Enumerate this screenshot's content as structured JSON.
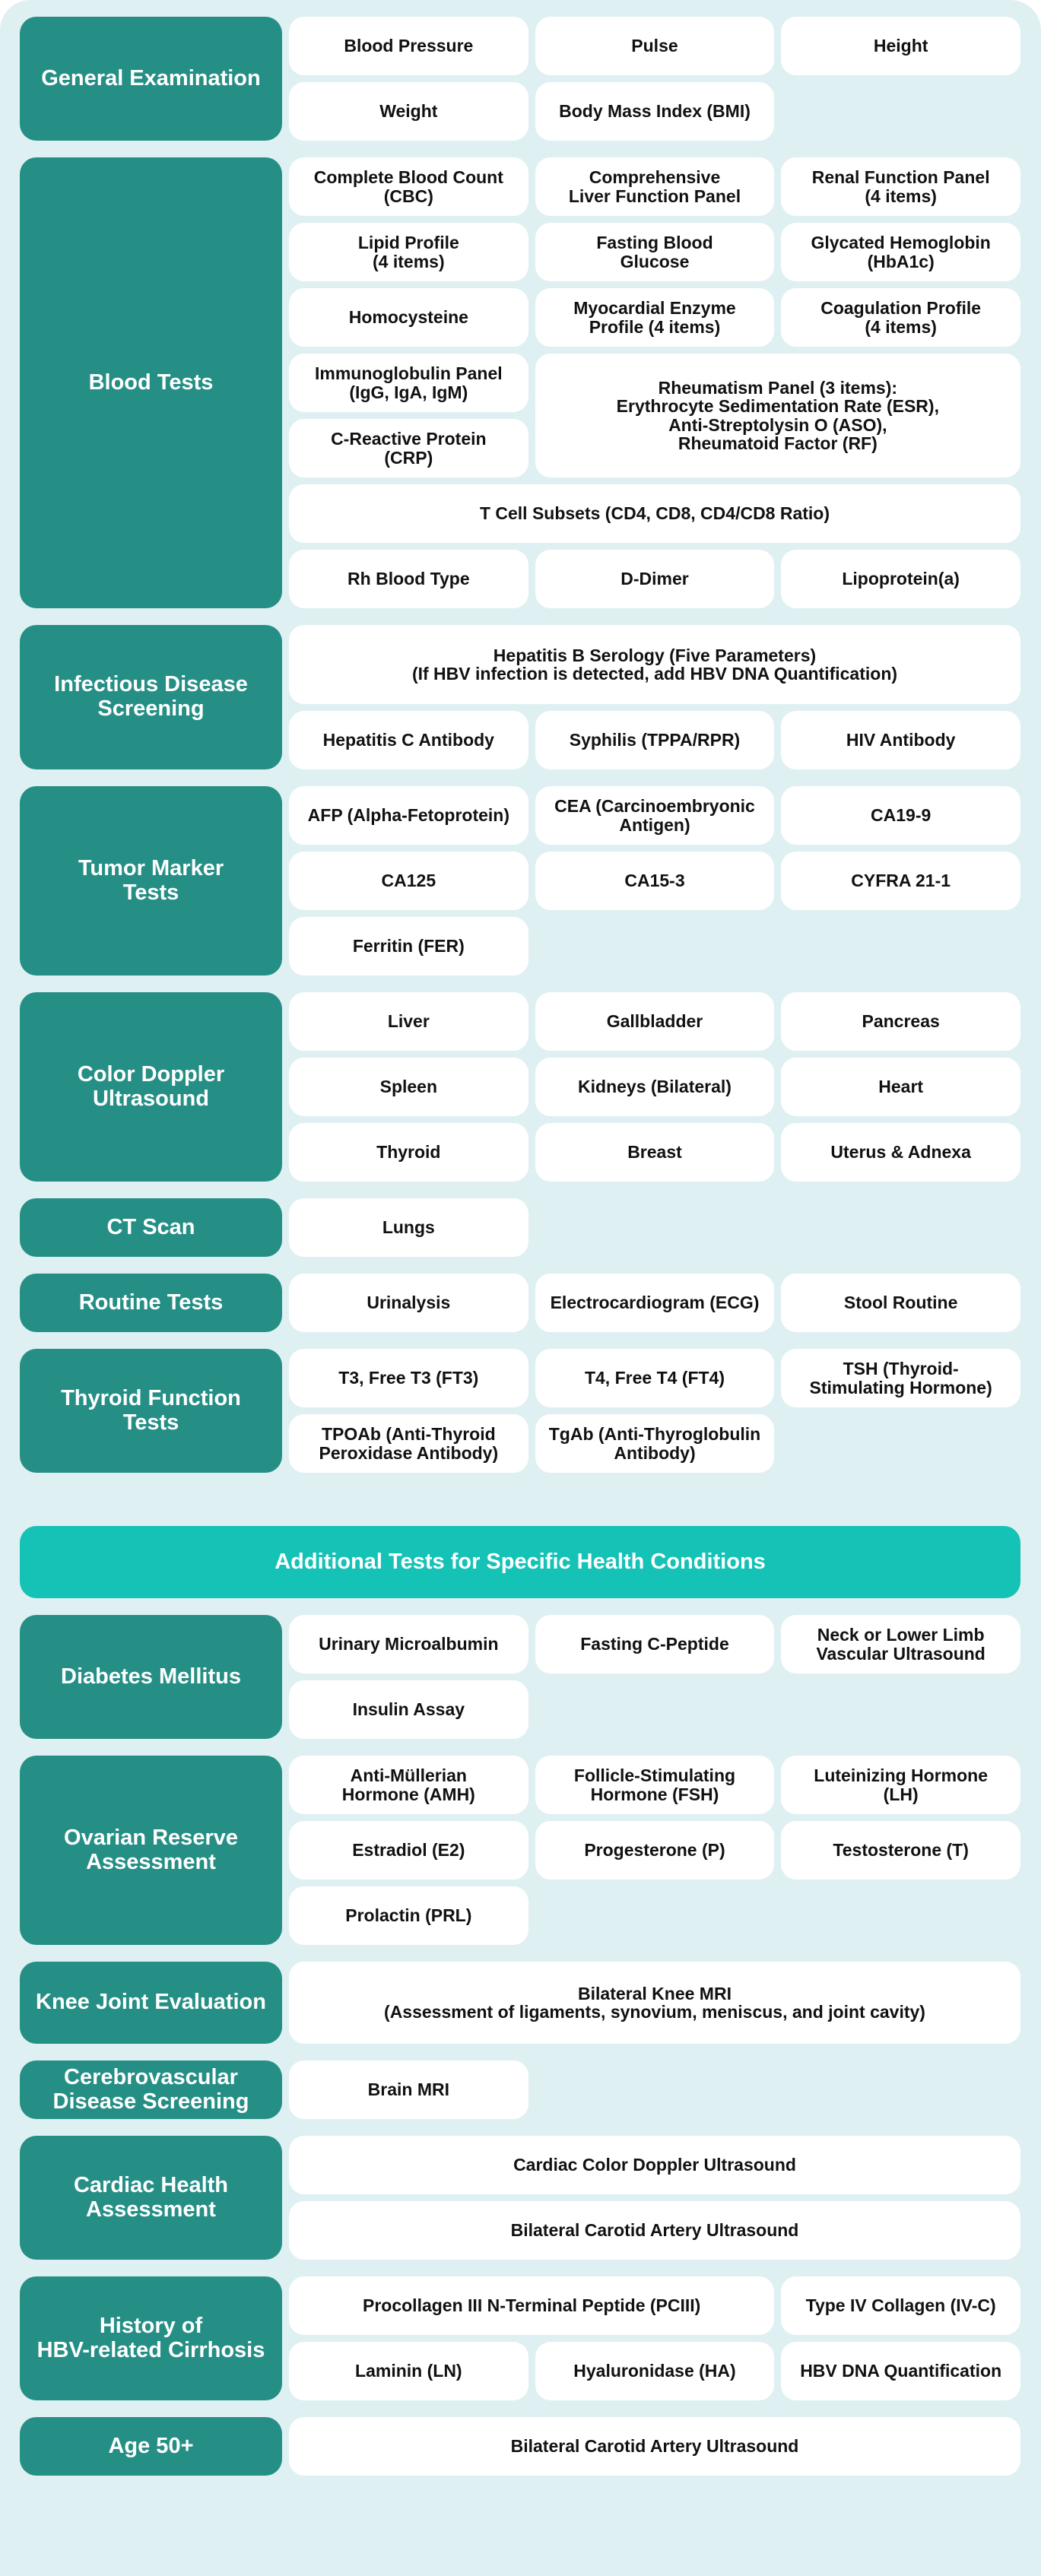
{
  "colors": {
    "background": "#dff0f2",
    "category": "#258f86",
    "banner": "#15c2b6",
    "cell": "#ffffff"
  },
  "sections": [
    {
      "label": "General Examination",
      "items": [
        "Blood Pressure",
        "Pulse",
        "Height",
        "Weight",
        "Body Mass Index (BMI)"
      ]
    },
    {
      "label": "Blood Tests",
      "items": [
        "Complete Blood Count\n(CBC)",
        "Comprehensive\nLiver Function Panel",
        "Renal Function Panel\n(4 items)",
        "Lipid Profile\n(4 items)",
        "Fasting Blood\nGlucose",
        "Glycated Hemoglobin\n(HbA1c)",
        "Homocysteine",
        "Myocardial Enzyme\nProfile (4 items)",
        "Coagulation Profile\n(4 items)",
        "Immunoglobulin Panel\n(IgG, IgA, IgM)",
        "Rheumatism Panel (3 items):\nErythrocyte Sedimentation Rate (ESR),\nAnti-Streptolysin O (ASO),\nRheumatoid Factor (RF)",
        "C-Reactive Protein\n(CRP)",
        "T Cell Subsets (CD4, CD8, CD4/CD8 Ratio)",
        "Rh Blood Type",
        "D-Dimer",
        "Lipoprotein(a)"
      ]
    },
    {
      "label": "Infectious Disease\nScreening",
      "items": [
        "Hepatitis B Serology (Five Parameters)\n(If HBV infection is detected, add HBV DNA Quantification)",
        "Hepatitis C Antibody",
        "Syphilis (TPPA/RPR)",
        "HIV Antibody"
      ]
    },
    {
      "label": "Tumor Marker\nTests",
      "items": [
        "AFP (Alpha-Fetoprotein)",
        "CEA (Carcinoembryonic\nAntigen)",
        "CA19-9",
        "CA125",
        "CA15-3",
        "CYFRA 21-1",
        "Ferritin (FER)"
      ]
    },
    {
      "label": "Color Doppler\nUltrasound",
      "items": [
        "Liver",
        "Gallbladder",
        "Pancreas",
        "Spleen",
        "Kidneys (Bilateral)",
        "Heart",
        "Thyroid",
        "Breast",
        "Uterus & Adnexa"
      ]
    },
    {
      "label": "CT Scan",
      "items": [
        "Lungs"
      ]
    },
    {
      "label": "Routine Tests",
      "items": [
        "Urinalysis",
        "Electrocardiogram (ECG)",
        "Stool Routine"
      ]
    },
    {
      "label": "Thyroid Function\nTests",
      "items": [
        "T3, Free T3 (FT3)",
        "T4, Free T4 (FT4)",
        "TSH (Thyroid-\nStimulating Hormone)",
        "TPOAb (Anti-Thyroid\nPeroxidase Antibody)",
        "TgAb (Anti-Thyroglobulin\nAntibody)"
      ]
    }
  ],
  "banner": "Additional Tests for Specific Health Conditions",
  "additional": [
    {
      "label": "Diabetes Mellitus",
      "items": [
        "Urinary Microalbumin",
        "Fasting C-Peptide",
        "Neck or Lower Limb\nVascular Ultrasound",
        "Insulin Assay"
      ]
    },
    {
      "label": "Ovarian Reserve\nAssessment",
      "items": [
        "Anti-Müllerian\nHormone (AMH)",
        "Follicle-Stimulating\nHormone (FSH)",
        "Luteinizing Hormone\n(LH)",
        "Estradiol (E2)",
        "Progesterone (P)",
        "Testosterone (T)",
        "Prolactin (PRL)"
      ]
    },
    {
      "label": "Knee Joint Evaluation",
      "items": [
        "Bilateral Knee MRI\n(Assessment of ligaments, synovium, meniscus, and joint cavity)"
      ]
    },
    {
      "label": "Cerebrovascular\nDisease Screening",
      "items": [
        "Brain MRI"
      ]
    },
    {
      "label": "Cardiac Health\nAssessment",
      "items": [
        "Cardiac Color Doppler Ultrasound",
        "Bilateral Carotid Artery Ultrasound"
      ]
    },
    {
      "label": "History of\nHBV-related Cirrhosis",
      "items": [
        "Procollagen III N-Terminal Peptide (PCIII)",
        "Type IV Collagen (IV-C)",
        "Laminin (LN)",
        "Hyaluronidase (HA)",
        "HBV DNA Quantification"
      ]
    },
    {
      "label": "Age 50+",
      "items": [
        "Bilateral Carotid Artery Ultrasound"
      ]
    }
  ]
}
